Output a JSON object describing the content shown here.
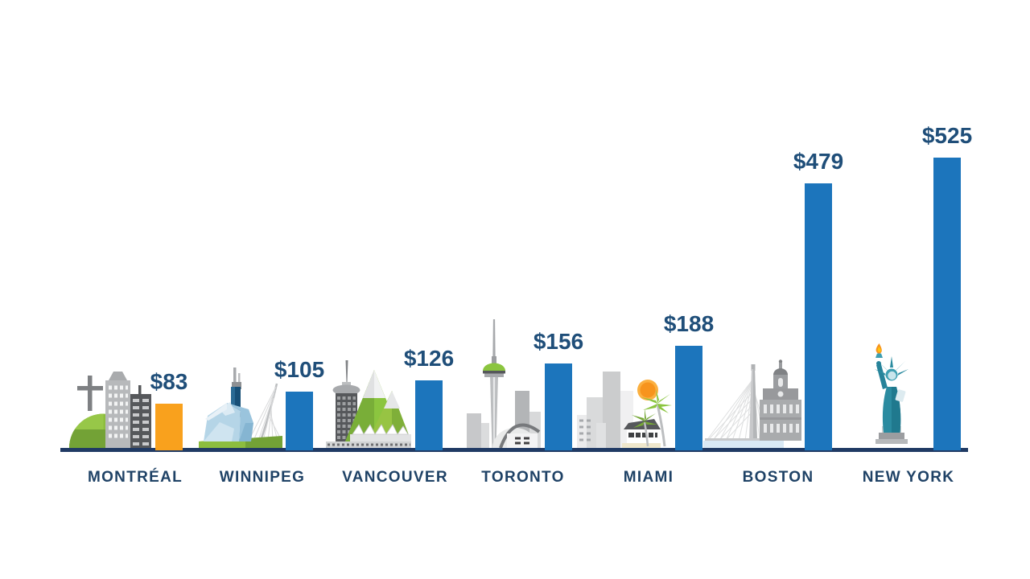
{
  "chart_data": {
    "type": "bar",
    "title": "",
    "categories": [
      "MONTRÉAL",
      "WINNIPEG",
      "VANCOUVER",
      "TORONTO",
      "MIAMI",
      "BOSTON",
      "NEW YORK"
    ],
    "values": [
      83,
      105,
      126,
      156,
      188,
      479,
      525
    ],
    "value_labels": [
      "$83",
      "$105",
      "$126",
      "$156",
      "$188",
      "$479",
      "$525"
    ],
    "currency_prefix": "$",
    "xlabel": "",
    "ylabel": "",
    "ylim": [
      0,
      560
    ],
    "grid": false,
    "legend_position": "none",
    "bar_color_default": "#1C75BC",
    "highlight": {
      "category": "MONTRÉAL",
      "color": "#F9A11D"
    }
  },
  "cities": [
    {
      "label": "MONTRÉAL",
      "value": 83,
      "value_label": "$83",
      "bar_color": "#F9A11D",
      "icon": "montreal-mount-royal-skyline-icon"
    },
    {
      "label": "WINNIPEG",
      "value": 105,
      "value_label": "$105",
      "bar_color": "#1C75BC",
      "icon": "winnipeg-museum-bridge-icon"
    },
    {
      "label": "VANCOUVER",
      "value": 126,
      "value_label": "$126",
      "bar_color": "#1C75BC",
      "icon": "vancouver-mountains-skyline-icon"
    },
    {
      "label": "TORONTO",
      "value": 156,
      "value_label": "$156",
      "bar_color": "#1C75BC",
      "icon": "toronto-cn-tower-icon"
    },
    {
      "label": "MIAMI",
      "value": 188,
      "value_label": "$188",
      "bar_color": "#1C75BC",
      "icon": "miami-beach-skyline-icon"
    },
    {
      "label": "BOSTON",
      "value": 479,
      "value_label": "$479",
      "bar_color": "#1C75BC",
      "icon": "boston-zakim-bridge-faneuil-hall-icon"
    },
    {
      "label": "NEW YORK",
      "value": 525,
      "value_label": "$525",
      "bar_color": "#1C75BC",
      "icon": "new-york-statue-of-liberty-icon"
    }
  ],
  "colors": {
    "background": "#FFFFFF",
    "axis_line": "#203A64",
    "value_text": "#1F4E79",
    "label_text": "#1F4266",
    "bar_blue": "#1C75BC",
    "bar_orange": "#F9A11D"
  }
}
